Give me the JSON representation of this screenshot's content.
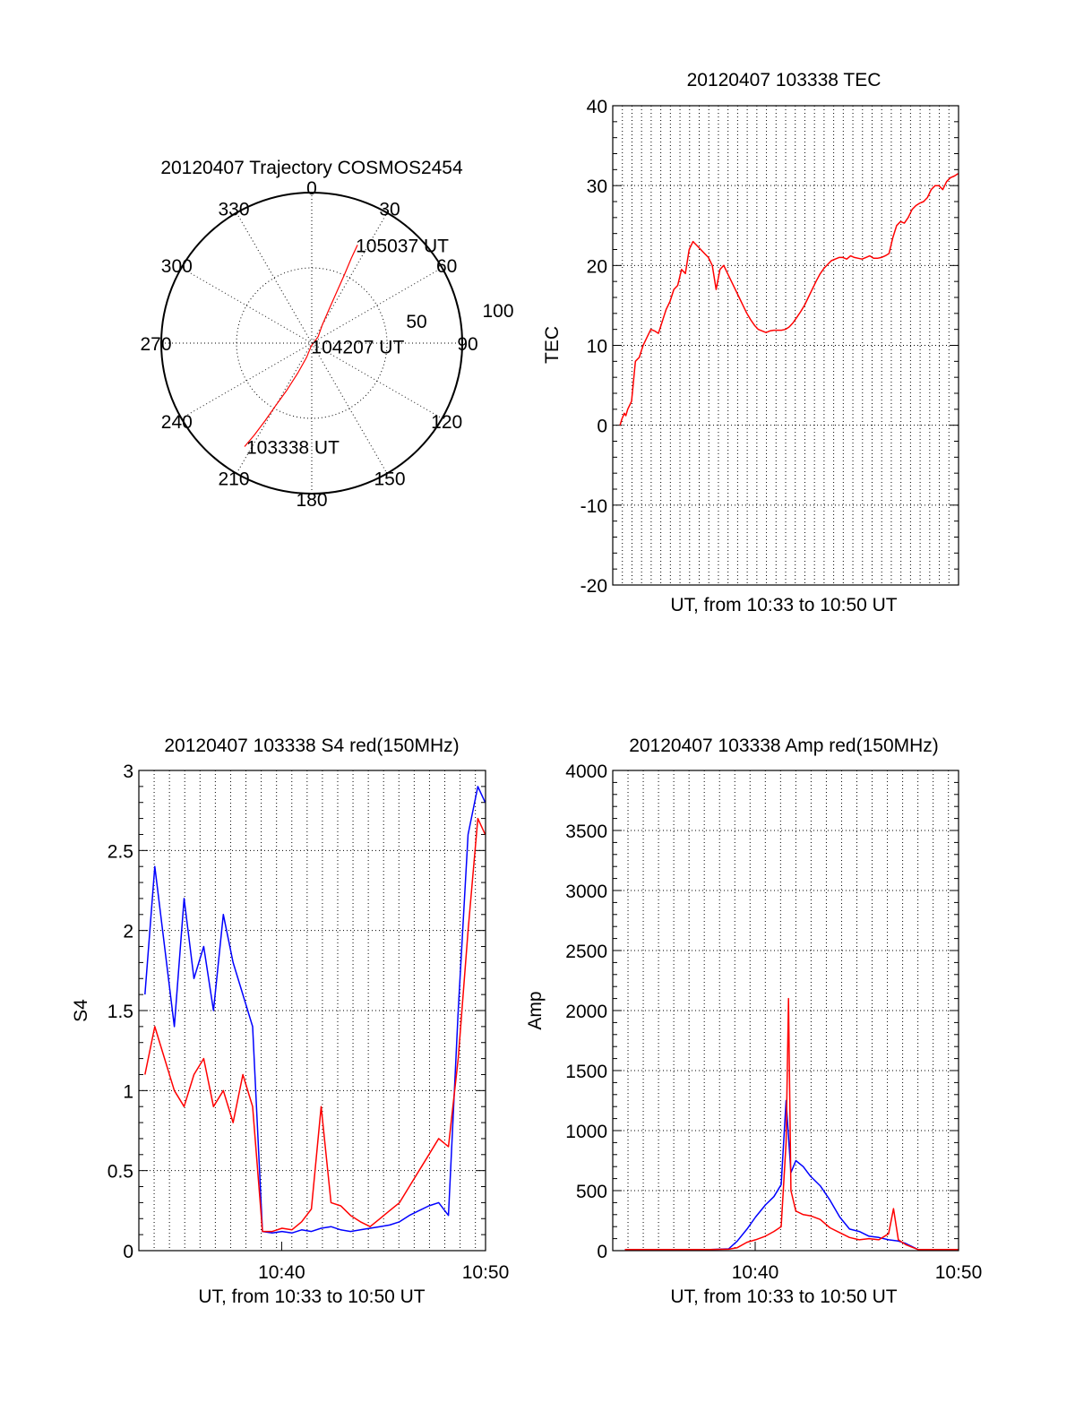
{
  "colors": {
    "red": "#ff0000",
    "blue": "#0000ff",
    "axis": "#000000"
  },
  "chart_data": [
    {
      "id": "trajectory",
      "type": "polar",
      "title": "20120407 Trajectory COSMOS2454",
      "azimuth_labels": [
        "0",
        "30",
        "60",
        "90",
        "120",
        "150",
        "180",
        "210",
        "240",
        "270",
        "300",
        "330"
      ],
      "radial_ticks": [
        {
          "value": 50,
          "label": "50"
        },
        {
          "value": 100,
          "label": "100"
        }
      ],
      "r_max": 90,
      "track": {
        "color": "red",
        "points": [
          {
            "az": 213,
            "r": 82
          },
          {
            "az": 212,
            "r": 72
          },
          {
            "az": 211,
            "r": 60
          },
          {
            "az": 210,
            "r": 48
          },
          {
            "az": 208,
            "r": 36
          },
          {
            "az": 205,
            "r": 22
          },
          {
            "az": 200,
            "r": 10
          },
          {
            "az": 190,
            "r": 2
          },
          {
            "az": 45,
            "r": 6
          },
          {
            "az": 30,
            "r": 14
          },
          {
            "az": 27,
            "r": 26
          },
          {
            "az": 26,
            "r": 38
          },
          {
            "az": 25.5,
            "r": 50
          },
          {
            "az": 25,
            "r": 62
          },
          {
            "az": 25,
            "r": 72
          }
        ]
      },
      "annotations": [
        {
          "text": "105037 UT",
          "az": 25,
          "r": 72
        },
        {
          "text": "104207 UT",
          "az": 190,
          "r": 2
        },
        {
          "text": "103338 UT",
          "az": 213,
          "r": 82
        }
      ]
    },
    {
      "id": "tec",
      "type": "line",
      "title": "20120407 103338 TEC",
      "xlabel": "UT, from 10:33 to 10:50 UT",
      "ylabel": "TEC",
      "xlim": [
        10.55,
        11.0
      ],
      "ylim": [
        -20,
        40
      ],
      "yticks": [
        -20,
        -10,
        0,
        10,
        20,
        30,
        40
      ],
      "ytick_labels": [
        "-20",
        "-10",
        "0",
        "10",
        "20",
        "30",
        "40"
      ],
      "series": [
        {
          "color": "red",
          "x": [
            10.5595,
            10.562,
            10.565,
            10.567,
            10.5695,
            10.5745,
            10.5795,
            10.5845,
            10.5895,
            10.5945,
            10.5995,
            10.6045,
            10.6095,
            10.6145,
            10.6195,
            10.6245,
            10.6295,
            10.6345,
            10.6395,
            10.6445,
            10.6495,
            10.6545,
            10.6595,
            10.6645,
            10.6695,
            10.6745,
            10.6795,
            10.6845,
            10.6895,
            10.6945,
            10.6995,
            10.7045,
            10.7095,
            10.7145,
            10.7195,
            10.7245,
            10.7295,
            10.7345,
            10.7395,
            10.7445,
            10.7495,
            10.7545,
            10.7595,
            10.7645,
            10.7695,
            10.7745,
            10.7795,
            10.7845,
            10.7895,
            10.7945,
            10.7995,
            10.8045,
            10.8095,
            10.8145,
            10.8195,
            10.8245,
            10.8295,
            10.8345,
            10.8395,
            10.8445,
            10.8495,
            10.8545,
            10.8595,
            10.8645,
            10.8695,
            10.8745,
            10.8795,
            10.8845,
            10.8895,
            10.8945,
            10.8995,
            10.9045,
            10.9095,
            10.9145,
            10.9195,
            10.9245,
            10.9295,
            10.9345,
            10.9395,
            10.9445,
            10.9495,
            10.9545,
            10.9595,
            10.9645,
            10.9695,
            10.9745,
            10.9795,
            10.9845,
            10.9895,
            10.9945,
            10.9995
          ],
          "y": [
            0.0,
            0.8,
            1.5,
            1.2,
            2.0,
            3.0,
            8.0,
            8.5,
            10.0,
            11.0,
            12.0,
            11.8,
            11.5,
            13.0,
            14.5,
            15.5,
            17.0,
            17.5,
            19.5,
            19.0,
            22.0,
            23.0,
            22.5,
            22.0,
            21.5,
            21.0,
            20.0,
            17.0,
            19.5,
            20.0,
            19.0,
            18.0,
            17.0,
            16.0,
            15.0,
            14.0,
            13.2,
            12.5,
            12.0,
            11.8,
            11.6,
            11.8,
            11.9,
            11.9,
            11.9,
            12.0,
            12.3,
            12.8,
            13.5,
            14.2,
            15.0,
            16.0,
            17.0,
            18.0,
            18.9,
            19.6,
            20.1,
            20.6,
            20.8,
            21.0,
            21.0,
            20.8,
            21.2,
            21.0,
            20.9,
            20.8,
            21.0,
            21.2,
            20.9,
            20.9,
            21.0,
            21.2,
            21.5,
            23.5,
            25.0,
            25.5,
            25.3,
            26.0,
            27.0,
            27.5,
            27.8,
            28.0,
            28.5,
            29.5,
            30.0,
            30.0,
            29.5,
            30.5,
            31.0,
            31.2,
            31.5
          ]
        }
      ]
    },
    {
      "id": "s4",
      "type": "line",
      "title": "20120407 103338 S4 red(150MHz)",
      "xlabel": "UT, from 10:33 to 10:50 UT",
      "ylabel": "S4",
      "xlim": [
        10.55,
        10.8333
      ],
      "ylim": [
        0,
        3
      ],
      "xticks": [
        10.6667,
        10.8333
      ],
      "xtick_labels": [
        "10:40",
        "10:50"
      ],
      "yticks": [
        0,
        0.5,
        1,
        1.5,
        2,
        2.5,
        3
      ],
      "ytick_labels": [
        "0",
        "0.5",
        "1",
        "1.5",
        "2",
        "2.5",
        "3"
      ],
      "series": [
        {
          "color": "blue",
          "x": [
            10.555,
            10.563,
            10.571,
            10.579,
            10.587,
            10.595,
            10.603,
            10.611,
            10.619,
            10.627,
            10.635,
            10.643,
            10.651,
            10.659,
            10.667,
            10.675,
            10.683,
            10.691,
            10.699,
            10.707,
            10.715,
            10.723,
            10.731,
            10.739,
            10.747,
            10.755,
            10.763,
            10.771,
            10.779,
            10.787,
            10.795,
            10.803,
            10.811,
            10.819,
            10.827,
            10.833
          ],
          "y": [
            1.6,
            2.4,
            1.9,
            1.4,
            2.2,
            1.7,
            1.9,
            1.5,
            2.1,
            1.8,
            1.6,
            1.4,
            0.12,
            0.11,
            0.12,
            0.11,
            0.13,
            0.12,
            0.14,
            0.15,
            0.13,
            0.12,
            0.13,
            0.14,
            0.15,
            0.16,
            0.18,
            0.22,
            0.25,
            0.28,
            0.3,
            0.22,
            1.5,
            2.6,
            2.9,
            2.8
          ]
        },
        {
          "color": "red",
          "x": [
            10.555,
            10.563,
            10.571,
            10.579,
            10.587,
            10.595,
            10.603,
            10.611,
            10.619,
            10.627,
            10.635,
            10.643,
            10.651,
            10.659,
            10.667,
            10.675,
            10.683,
            10.691,
            10.699,
            10.707,
            10.715,
            10.723,
            10.731,
            10.739,
            10.747,
            10.755,
            10.763,
            10.771,
            10.779,
            10.787,
            10.795,
            10.803,
            10.811,
            10.819,
            10.827,
            10.833
          ],
          "y": [
            1.1,
            1.4,
            1.2,
            1.0,
            0.9,
            1.1,
            1.2,
            0.9,
            1.0,
            0.8,
            1.1,
            0.9,
            0.12,
            0.12,
            0.14,
            0.13,
            0.18,
            0.26,
            0.9,
            0.3,
            0.28,
            0.22,
            0.18,
            0.15,
            0.2,
            0.25,
            0.3,
            0.4,
            0.5,
            0.6,
            0.7,
            0.65,
            1.2,
            2.0,
            2.7,
            2.6
          ]
        }
      ]
    },
    {
      "id": "amp",
      "type": "line",
      "title": "20120407 103338 Amp red(150MHz)",
      "xlabel": "UT, from 10:33 to 10:50 UT",
      "ylabel": "Amp",
      "xlim": [
        10.55,
        10.8333
      ],
      "ylim": [
        0,
        4000
      ],
      "xticks": [
        10.6667,
        10.8333
      ],
      "xtick_labels": [
        "10:40",
        "10:50"
      ],
      "yticks": [
        0,
        500,
        1000,
        1500,
        2000,
        2500,
        3000,
        3500,
        4000
      ],
      "ytick_labels": [
        "0",
        "500",
        "1000",
        "1500",
        "2000",
        "2500",
        "3000",
        "3500",
        "4000"
      ],
      "series": [
        {
          "color": "blue",
          "x": [
            10.56,
            10.6,
            10.63,
            10.645,
            10.652,
            10.66,
            10.667,
            10.675,
            10.682,
            10.688,
            10.692,
            10.696,
            10.7,
            10.706,
            10.712,
            10.72,
            10.728,
            10.736,
            10.744,
            10.752,
            10.76,
            10.768,
            10.776,
            10.784,
            10.79,
            10.8,
            10.82,
            10.8333
          ],
          "y": [
            10,
            10,
            10,
            15,
            80,
            180,
            280,
            380,
            450,
            550,
            1250,
            650,
            750,
            700,
            620,
            540,
            420,
            280,
            180,
            160,
            120,
            110,
            90,
            80,
            60,
            10,
            10,
            10
          ]
        },
        {
          "color": "red",
          "x": [
            10.56,
            10.6,
            10.63,
            10.645,
            10.652,
            10.66,
            10.667,
            10.675,
            10.682,
            10.688,
            10.692,
            10.694,
            10.696,
            10.7,
            10.706,
            10.712,
            10.72,
            10.728,
            10.736,
            10.744,
            10.752,
            10.76,
            10.768,
            10.776,
            10.78,
            10.784,
            10.79,
            10.8,
            10.82,
            10.8333
          ],
          "y": [
            10,
            10,
            10,
            12,
            25,
            70,
            90,
            120,
            160,
            200,
            900,
            2100,
            500,
            330,
            300,
            290,
            260,
            190,
            150,
            110,
            90,
            100,
            90,
            140,
            350,
            90,
            50,
            10,
            10,
            10
          ]
        }
      ]
    }
  ]
}
